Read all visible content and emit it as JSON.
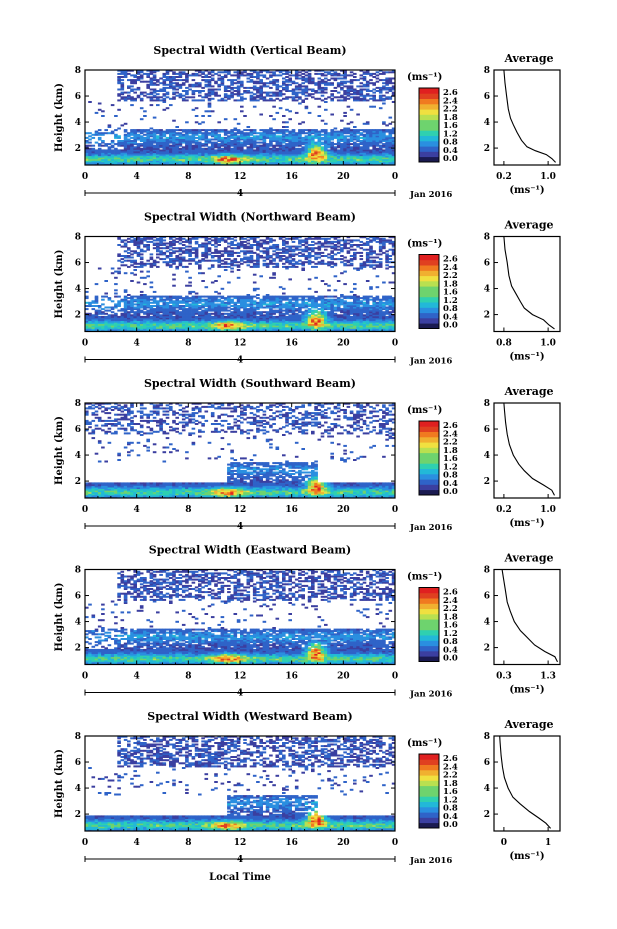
{
  "figure": {
    "bottom_xlabel": "Local Time",
    "date_label": "Jan 2016",
    "day_label": "4",
    "colorbar_unit": "(ms⁻¹)",
    "colorbar_ticks": [
      "2.6",
      "2.4",
      "2.2",
      "1.8",
      "1.6",
      "1.2",
      "0.8",
      "0.4",
      "0.0"
    ],
    "colors": {
      "low": "#3b3fa0",
      "mid": "#22b8d8",
      "green": "#6ed36e",
      "yellow": "#f0e040",
      "orange": "#f07a20",
      "high": "#e02020"
    }
  },
  "chart_data": [
    {
      "type": "heatmap",
      "title": "Spectral Width (Vertical Beam)",
      "ylabel": "Height (km)",
      "xlabel": "Local Time",
      "x_ticks": [
        "0",
        "4",
        "8",
        "12",
        "16",
        "20",
        "0"
      ],
      "y_ticks": [
        "2",
        "4",
        "6",
        "8"
      ],
      "xlim": [
        0,
        24
      ],
      "ylim": [
        0.7,
        8
      ],
      "colorbar": {
        "label": "(ms⁻¹)",
        "range": [
          0,
          2.8
        ]
      },
      "profile": {
        "title": "Average",
        "xlabel": "(ms⁻¹)",
        "x_ticks": [
          "0.2",
          "1.0"
        ],
        "y_ticks": [
          "2",
          "4",
          "6",
          "8"
        ],
        "xlim": [
          0,
          1.2
        ],
        "ylim": [
          0.7,
          8
        ],
        "points": [
          [
            1.12,
            0.9
          ],
          [
            1.05,
            1.2
          ],
          [
            0.95,
            1.5
          ],
          [
            0.75,
            1.8
          ],
          [
            0.6,
            2.1
          ],
          [
            0.5,
            2.6
          ],
          [
            0.42,
            3.2
          ],
          [
            0.35,
            3.8
          ],
          [
            0.3,
            4.3
          ],
          [
            0.26,
            5.0
          ],
          [
            0.23,
            6.0
          ],
          [
            0.2,
            7.0
          ],
          [
            0.18,
            8.0
          ]
        ]
      }
    },
    {
      "type": "heatmap",
      "title": "Spectral Width (Northward Beam)",
      "ylabel": "Height (km)",
      "xlabel": "Local Time",
      "x_ticks": [
        "0",
        "4",
        "8",
        "12",
        "16",
        "20",
        "0"
      ],
      "y_ticks": [
        "2",
        "4",
        "6",
        "8"
      ],
      "xlim": [
        0,
        24
      ],
      "ylim": [
        0.7,
        8
      ],
      "colorbar": {
        "label": "(ms⁻¹)",
        "range": [
          0,
          2.8
        ]
      },
      "profile": {
        "title": "Average",
        "xlabel": "(ms⁻¹)",
        "x_ticks": [
          "0.8",
          "1.0"
        ],
        "y_ticks": [
          "2",
          "4",
          "6",
          "8"
        ],
        "xlim": [
          0,
          1.2
        ],
        "ylim": [
          0.7,
          8
        ],
        "points": [
          [
            1.1,
            0.9
          ],
          [
            1.0,
            1.2
          ],
          [
            0.9,
            1.6
          ],
          [
            0.7,
            2.0
          ],
          [
            0.55,
            2.5
          ],
          [
            0.48,
            3.0
          ],
          [
            0.4,
            3.6
          ],
          [
            0.32,
            4.2
          ],
          [
            0.27,
            5.0
          ],
          [
            0.24,
            6.0
          ],
          [
            0.2,
            7.0
          ],
          [
            0.18,
            8.0
          ]
        ]
      }
    },
    {
      "type": "heatmap",
      "title": "Spectral Width (Southward Beam)",
      "ylabel": "Height (km)",
      "xlabel": "Local Time",
      "x_ticks": [
        "0",
        "4",
        "8",
        "12",
        "16",
        "20",
        "0"
      ],
      "y_ticks": [
        "2",
        "4",
        "6",
        "8"
      ],
      "xlim": [
        0,
        24
      ],
      "ylim": [
        0.7,
        8
      ],
      "colorbar": {
        "label": "(ms⁻¹)",
        "range": [
          0,
          2.8
        ]
      },
      "profile": {
        "title": "Average",
        "xlabel": "(ms⁻¹)",
        "x_ticks": [
          "0.2",
          "1.0"
        ],
        "y_ticks": [
          "2",
          "4",
          "6",
          "8"
        ],
        "xlim": [
          0,
          1.2
        ],
        "ylim": [
          0.7,
          8
        ],
        "points": [
          [
            1.1,
            0.9
          ],
          [
            1.05,
            1.3
          ],
          [
            0.9,
            1.7
          ],
          [
            0.7,
            2.2
          ],
          [
            0.55,
            2.8
          ],
          [
            0.45,
            3.3
          ],
          [
            0.35,
            4.0
          ],
          [
            0.28,
            4.8
          ],
          [
            0.24,
            5.6
          ],
          [
            0.21,
            6.5
          ],
          [
            0.19,
            7.5
          ],
          [
            0.18,
            8.0
          ]
        ]
      }
    },
    {
      "type": "heatmap",
      "title": "Spectral Width (Eastward Beam)",
      "ylabel": "Height (km)",
      "xlabel": "Local Time",
      "x_ticks": [
        "0",
        "4",
        "8",
        "12",
        "16",
        "20",
        "0"
      ],
      "y_ticks": [
        "2",
        "4",
        "6",
        "8"
      ],
      "xlim": [
        0,
        24
      ],
      "ylim": [
        0.7,
        8
      ],
      "colorbar": {
        "label": "(ms⁻¹)",
        "range": [
          0,
          2.8
        ]
      },
      "profile": {
        "title": "Average",
        "xlabel": "(ms⁻¹)",
        "x_ticks": [
          "0.3",
          "1.3"
        ],
        "y_ticks": [
          "2",
          "4",
          "6",
          "8"
        ],
        "xlim": [
          0.1,
          1.4
        ],
        "ylim": [
          0.7,
          8
        ],
        "points": [
          [
            1.35,
            0.9
          ],
          [
            1.3,
            1.3
          ],
          [
            1.1,
            1.7
          ],
          [
            0.9,
            2.2
          ],
          [
            0.75,
            2.8
          ],
          [
            0.62,
            3.3
          ],
          [
            0.5,
            4.0
          ],
          [
            0.42,
            4.8
          ],
          [
            0.36,
            5.5
          ],
          [
            0.32,
            6.5
          ],
          [
            0.28,
            7.5
          ],
          [
            0.26,
            8.0
          ]
        ]
      }
    },
    {
      "type": "heatmap",
      "title": "Spectral Width (Westward Beam)",
      "ylabel": "Height (km)",
      "xlabel": "Local Time",
      "x_ticks": [
        "0",
        "4",
        "8",
        "12",
        "16",
        "20",
        "0"
      ],
      "y_ticks": [
        "2",
        "4",
        "6",
        "8"
      ],
      "xlim": [
        0,
        24
      ],
      "ylim": [
        0.7,
        8
      ],
      "colorbar": {
        "label": "(ms⁻¹)",
        "range": [
          0,
          2.8
        ]
      },
      "profile": {
        "title": "Average",
        "xlabel": "(ms⁻¹)",
        "x_ticks": [
          "0",
          "1"
        ],
        "y_ticks": [
          "2",
          "4",
          "6",
          "8"
        ],
        "xlim": [
          0,
          1.4
        ],
        "ylim": [
          0.7,
          8
        ],
        "points": [
          [
            1.2,
            0.9
          ],
          [
            1.1,
            1.3
          ],
          [
            0.95,
            1.7
          ],
          [
            0.75,
            2.2
          ],
          [
            0.55,
            2.8
          ],
          [
            0.4,
            3.3
          ],
          [
            0.3,
            4.0
          ],
          [
            0.22,
            4.8
          ],
          [
            0.18,
            5.6
          ],
          [
            0.15,
            6.5
          ],
          [
            0.13,
            7.5
          ],
          [
            0.12,
            8.0
          ]
        ]
      }
    }
  ]
}
